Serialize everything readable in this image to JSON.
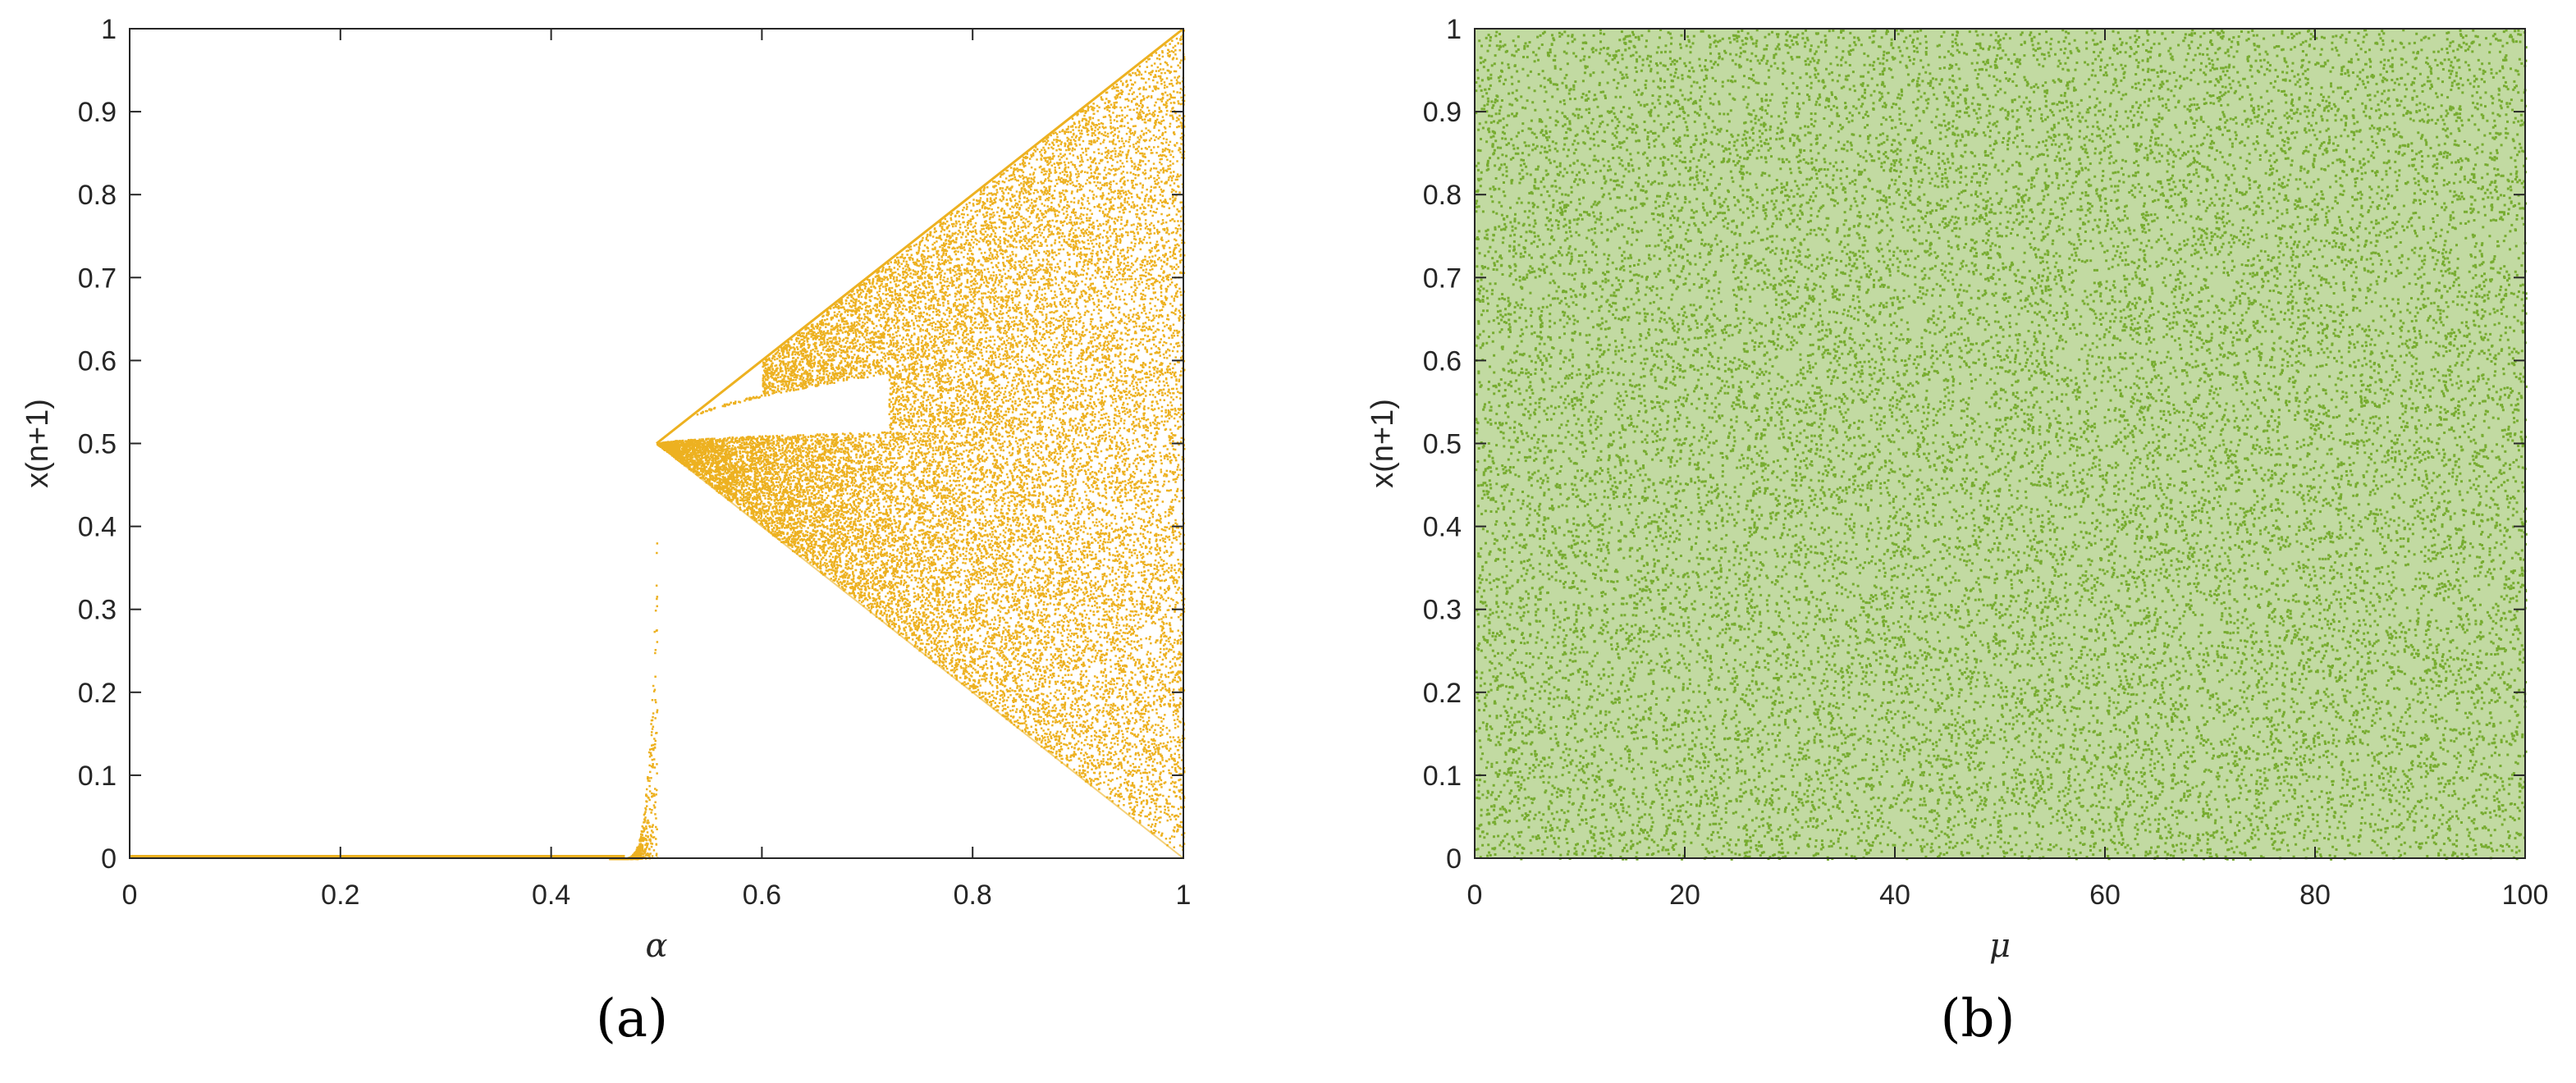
{
  "chart_data": [
    {
      "type": "scatter",
      "panel_label": "(a)",
      "xlabel": "α",
      "ylabel": "x(n+1)",
      "xlim": [
        0,
        1
      ],
      "ylim": [
        0,
        1
      ],
      "xticks": [
        "0",
        "0.2",
        "0.4",
        "0.6",
        "0.8",
        "1"
      ],
      "yticks": [
        "0",
        "0.1",
        "0.2",
        "0.3",
        "0.4",
        "0.5",
        "0.6",
        "0.7",
        "0.8",
        "0.9",
        "1"
      ],
      "grid": false,
      "color": "#EDB120",
      "series": [
        {
          "description_points": [
            [
              0.0,
              0.0
            ],
            [
              0.2,
              0.0
            ],
            [
              0.4,
              0.0
            ],
            [
              0.46,
              0.005
            ],
            [
              0.48,
              0.03
            ],
            [
              0.49,
              0.12
            ],
            [
              0.495,
              0.25
            ],
            [
              0.5,
              0.41
            ],
            [
              0.5,
              0.5
            ],
            [
              0.6,
              0.6
            ],
            [
              0.7,
              0.7
            ],
            [
              0.8,
              0.8
            ],
            [
              0.9,
              0.9
            ],
            [
              1.0,
              1.0
            ],
            [
              0.6,
              0.4
            ],
            [
              0.7,
              0.3
            ],
            [
              0.8,
              0.2
            ],
            [
              0.9,
              0.1
            ],
            [
              1.0,
              0.0
            ],
            [
              0.6,
              0.56
            ],
            [
              0.7,
              0.585
            ],
            [
              0.6,
              0.515
            ],
            [
              0.7,
              0.545
            ]
          ]
        }
      ]
    },
    {
      "type": "scatter",
      "panel_label": "(b)",
      "xlabel": "μ",
      "ylabel": "x(n+1)",
      "xlim": [
        0,
        100
      ],
      "ylim": [
        0,
        1
      ],
      "xticks": [
        "0",
        "20",
        "40",
        "60",
        "80",
        "100"
      ],
      "yticks": [
        "0",
        "0.1",
        "0.2",
        "0.3",
        "0.4",
        "0.5",
        "0.6",
        "0.7",
        "0.8",
        "0.9",
        "1"
      ],
      "grid": false,
      "color": "#77AC30",
      "series": [
        {
          "description_points": [
            [
              0,
              0
            ],
            [
              100,
              1
            ]
          ]
        }
      ]
    }
  ]
}
